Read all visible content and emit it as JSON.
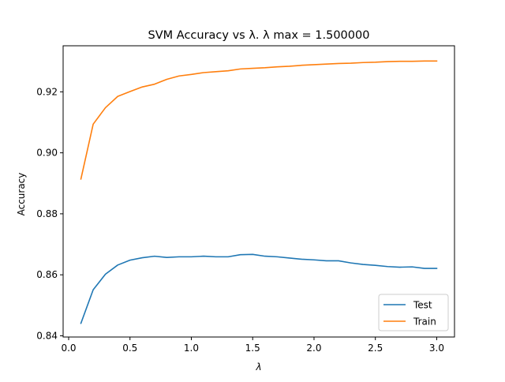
{
  "chart_data": {
    "type": "line",
    "title": "SVM Accuracy vs λ. λ max = 1.500000",
    "xlabel": "λ",
    "ylabel": "Accuracy",
    "xlim": [
      -0.045,
      3.145
    ],
    "ylim": [
      0.8396,
      0.9351
    ],
    "xticks": [
      0.0,
      0.5,
      1.0,
      1.5,
      2.0,
      2.5,
      3.0
    ],
    "xtick_labels": [
      "0.0",
      "0.5",
      "1.0",
      "1.5",
      "2.0",
      "2.5",
      "3.0"
    ],
    "yticks": [
      0.84,
      0.86,
      0.88,
      0.9,
      0.92
    ],
    "ytick_labels": [
      "0.84",
      "0.86",
      "0.88",
      "0.90",
      "0.92"
    ],
    "grid": false,
    "legend_position": "lower-right",
    "x": [
      0.1,
      0.2,
      0.3,
      0.4,
      0.5,
      0.6,
      0.7,
      0.8,
      0.9,
      1.0,
      1.1,
      1.2,
      1.3,
      1.4,
      1.5,
      1.6,
      1.7,
      1.8,
      1.9,
      2.0,
      2.1,
      2.2,
      2.3,
      2.4,
      2.5,
      2.6,
      2.7,
      2.8,
      2.9,
      3.0
    ],
    "series": [
      {
        "name": "Test",
        "color": "#1f77b4",
        "values": [
          0.8441,
          0.8551,
          0.8602,
          0.8632,
          0.8648,
          0.8656,
          0.8661,
          0.8657,
          0.8659,
          0.8659,
          0.8661,
          0.8659,
          0.8659,
          0.8666,
          0.8667,
          0.8661,
          0.8659,
          0.8655,
          0.8651,
          0.8649,
          0.8646,
          0.8646,
          0.8639,
          0.8634,
          0.8631,
          0.8627,
          0.8625,
          0.8626,
          0.8621,
          0.8621
        ]
      },
      {
        "name": "Train",
        "color": "#ff7f0e",
        "values": [
          0.8914,
          0.9094,
          0.9148,
          0.9185,
          0.9201,
          0.9216,
          0.9225,
          0.9241,
          0.9252,
          0.9257,
          0.9263,
          0.9266,
          0.9269,
          0.9275,
          0.9277,
          0.9279,
          0.9282,
          0.9284,
          0.9287,
          0.9289,
          0.9291,
          0.9293,
          0.9294,
          0.9296,
          0.9297,
          0.9299,
          0.93,
          0.93,
          0.9301,
          0.9301
        ]
      }
    ]
  }
}
